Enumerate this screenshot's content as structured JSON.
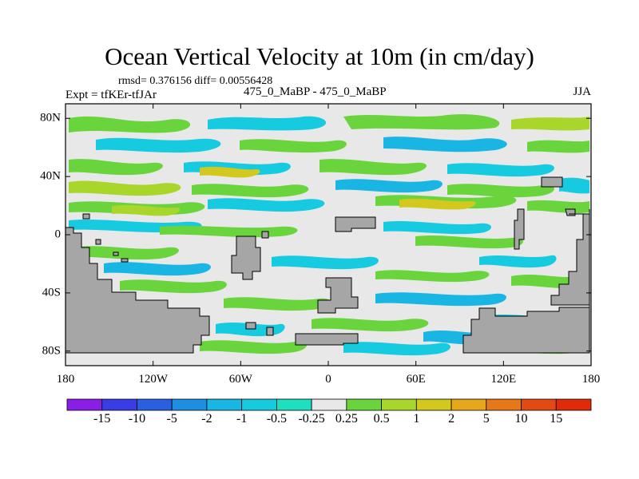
{
  "title": "Ocean Vertical Velocity at 10m (in cm/day)",
  "stats": "rmsd= 0.376156 diff= 0.00556428",
  "experiment": "Expt = tfKEr-tfJAr",
  "period": "475_0_MaBP - 475_0_MaBP",
  "season": "JJA",
  "x_ticks": [
    "180",
    "120W",
    "60W",
    "0",
    "60E",
    "120E",
    "180"
  ],
  "y_ticks": [
    "80N",
    "40N",
    "0",
    "40S",
    "80S"
  ],
  "colorbar": {
    "labels": [
      "-15",
      "-10",
      "-5",
      "-2",
      "-1",
      "-0.5",
      "-0.25",
      "0.25",
      "0.5",
      "1",
      "2",
      "5",
      "10",
      "15"
    ],
    "colors": [
      "#8a1ee6",
      "#3a3de6",
      "#2a5fe0",
      "#1e8ee0",
      "#19b6e3",
      "#16cbe0",
      "#1ee0c0",
      "#e8e8e8",
      "#6ad43c",
      "#a8d62a",
      "#d3c81e",
      "#e6a81a",
      "#e6781a",
      "#e24a14",
      "#e02a0c"
    ]
  },
  "land_color": "#a6a6a6",
  "background_color": "#e8e8e8"
}
